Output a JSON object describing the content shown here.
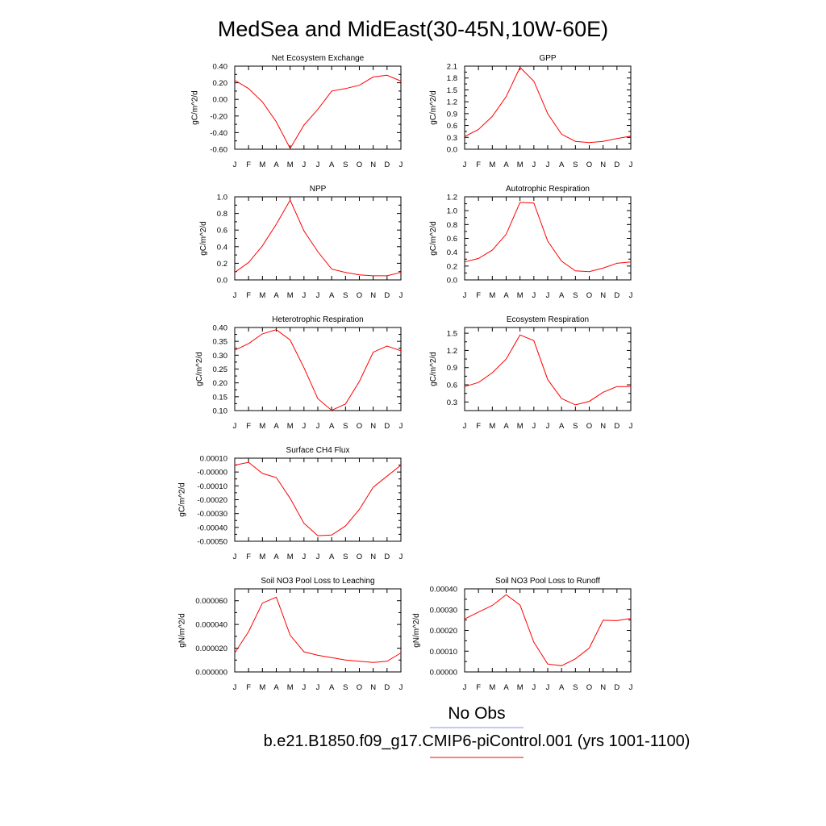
{
  "title": "MedSea and MidEast(30-45N,10W-60E)",
  "legend": [
    {
      "label": "No Obs",
      "color": "#8c8cff"
    },
    {
      "label": "b.e21.B1850.f09_g17.CMIP6-piControl.001 (yrs 1001-1100)",
      "color": "#ff0000"
    }
  ],
  "chart_data": [
    {
      "type": "line",
      "title": "Net Ecosystem Exchange",
      "ylabel": "gC/m^2/d",
      "x": [
        "J",
        "F",
        "M",
        "A",
        "M",
        "J",
        "J",
        "A",
        "S",
        "O",
        "N",
        "D",
        "J"
      ],
      "ylim": [
        -0.6,
        0.4
      ],
      "yticks": [
        -0.6,
        -0.4,
        -0.2,
        0.0,
        0.2,
        0.4
      ],
      "ytick_labels": [
        "-0.60",
        "-0.40",
        "-0.20",
        "0.00",
        "0.20",
        "0.40"
      ],
      "series": [
        {
          "color": "#ff0000",
          "values": [
            0.23,
            0.13,
            -0.03,
            -0.27,
            -0.59,
            -0.31,
            -0.12,
            0.1,
            0.13,
            0.17,
            0.27,
            0.29,
            0.22
          ]
        }
      ]
    },
    {
      "type": "line",
      "title": "GPP",
      "ylabel": "gC/m^2/d",
      "x": [
        "J",
        "F",
        "M",
        "A",
        "M",
        "J",
        "J",
        "A",
        "S",
        "O",
        "N",
        "D",
        "J"
      ],
      "ylim": [
        0.0,
        2.1
      ],
      "yticks": [
        0.0,
        0.3,
        0.6,
        0.9,
        1.2,
        1.5,
        1.8,
        2.1
      ],
      "ytick_labels": [
        "0.0",
        "0.3",
        "0.6",
        "0.9",
        "1.2",
        "1.5",
        "1.8",
        "2.1"
      ],
      "series": [
        {
          "color": "#ff0000",
          "values": [
            0.32,
            0.5,
            0.83,
            1.33,
            2.07,
            1.72,
            0.9,
            0.38,
            0.2,
            0.17,
            0.2,
            0.27,
            0.33
          ]
        }
      ]
    },
    {
      "type": "line",
      "title": "NPP",
      "ylabel": "gC/m^2/d",
      "x": [
        "J",
        "F",
        "M",
        "A",
        "M",
        "J",
        "J",
        "A",
        "S",
        "O",
        "N",
        "D",
        "J"
      ],
      "ylim": [
        0.0,
        1.0
      ],
      "yticks": [
        0.0,
        0.2,
        0.4,
        0.6,
        0.8,
        1.0
      ],
      "ytick_labels": [
        "0.0",
        "0.2",
        "0.4",
        "0.6",
        "0.8",
        "1.0"
      ],
      "series": [
        {
          "color": "#ff0000",
          "values": [
            0.09,
            0.21,
            0.41,
            0.67,
            0.96,
            0.59,
            0.34,
            0.13,
            0.09,
            0.06,
            0.05,
            0.05,
            0.09
          ]
        }
      ]
    },
    {
      "type": "line",
      "title": "Autotrophic Respiration",
      "ylabel": "gC/m^2/d",
      "x": [
        "J",
        "F",
        "M",
        "A",
        "M",
        "J",
        "J",
        "A",
        "S",
        "O",
        "N",
        "D",
        "J"
      ],
      "ylim": [
        0.0,
        1.2
      ],
      "yticks": [
        0.0,
        0.2,
        0.4,
        0.6,
        0.8,
        1.0,
        1.2
      ],
      "ytick_labels": [
        "0.0",
        "0.2",
        "0.4",
        "0.6",
        "0.8",
        "1.0",
        "1.2"
      ],
      "series": [
        {
          "color": "#ff0000",
          "values": [
            0.26,
            0.31,
            0.43,
            0.66,
            1.12,
            1.11,
            0.56,
            0.27,
            0.13,
            0.12,
            0.17,
            0.24,
            0.26
          ]
        }
      ]
    },
    {
      "type": "line",
      "title": "Heterotrophic Respiration",
      "ylabel": "gC/m^2/d",
      "x": [
        "J",
        "F",
        "M",
        "A",
        "M",
        "J",
        "J",
        "A",
        "S",
        "O",
        "N",
        "D",
        "J"
      ],
      "ylim": [
        0.1,
        0.4
      ],
      "yticks": [
        0.1,
        0.15,
        0.2,
        0.25,
        0.3,
        0.35,
        0.4
      ],
      "ytick_labels": [
        "0.10",
        "0.15",
        "0.20",
        "0.25",
        "0.30",
        "0.35",
        "0.40"
      ],
      "series": [
        {
          "color": "#ff0000",
          "values": [
            0.318,
            0.342,
            0.377,
            0.392,
            0.355,
            0.255,
            0.143,
            0.101,
            0.124,
            0.205,
            0.311,
            0.333,
            0.316
          ]
        }
      ]
    },
    {
      "type": "line",
      "title": "Ecosystem Respiration",
      "ylabel": "gC/m^2/d",
      "x": [
        "J",
        "F",
        "M",
        "A",
        "M",
        "J",
        "J",
        "A",
        "S",
        "O",
        "N",
        "D",
        "J"
      ],
      "ylim": [
        0.15,
        1.6
      ],
      "yticks": [
        0.3,
        0.6,
        0.9,
        1.2,
        1.5
      ],
      "ytick_labels": [
        "0.3",
        "0.6",
        "0.9",
        "1.2",
        "1.5"
      ],
      "series": [
        {
          "color": "#ff0000",
          "values": [
            0.57,
            0.64,
            0.81,
            1.05,
            1.47,
            1.37,
            0.69,
            0.36,
            0.25,
            0.31,
            0.47,
            0.57,
            0.57
          ]
        }
      ]
    },
    {
      "type": "line",
      "title": "Surface CH4 Flux",
      "ylabel": "gC/m^2/d",
      "x": [
        "J",
        "F",
        "M",
        "A",
        "M",
        "J",
        "J",
        "A",
        "S",
        "O",
        "N",
        "D",
        "J"
      ],
      "ylim": [
        -0.0005,
        0.0001
      ],
      "yticks": [
        -0.0005,
        -0.0004,
        -0.0003,
        -0.0002,
        -0.0001,
        0.0,
        0.0001
      ],
      "ytick_labels": [
        "-0.00050",
        "-0.00040",
        "-0.00030",
        "-0.00020",
        "-0.00010",
        "-0.00000",
        "0.00010"
      ],
      "series": [
        {
          "color": "#ff0000",
          "values": [
            5e-05,
            7e-05,
            -1e-05,
            -4e-05,
            -0.00019,
            -0.00037,
            -0.00046,
            -0.000455,
            -0.00039,
            -0.00027,
            -0.00011,
            -3e-05,
            5e-05
          ]
        }
      ]
    },
    {
      "type": "line",
      "title": "Soil NO3 Pool Loss to Leaching",
      "ylabel": "gN/m^2/d",
      "x": [
        "J",
        "F",
        "M",
        "A",
        "M",
        "J",
        "J",
        "A",
        "S",
        "O",
        "N",
        "D",
        "J"
      ],
      "ylim": [
        0.0,
        7e-05
      ],
      "yticks": [
        0.0,
        2e-05,
        4e-05,
        6e-05
      ],
      "ytick_labels": [
        "0.000000",
        "0.000020",
        "0.000040",
        "0.000060"
      ],
      "series": [
        {
          "color": "#ff0000",
          "values": [
            1.6e-05,
            3.4e-05,
            5.8e-05,
            6.3e-05,
            3.1e-05,
            1.7e-05,
            1.4e-05,
            1.2e-05,
            1e-05,
            9e-06,
            8e-06,
            9e-06,
            1.6e-05
          ]
        }
      ]
    },
    {
      "type": "line",
      "title": "Soil NO3 Pool Loss to Runoff",
      "ylabel": "gN/m^2/d",
      "x": [
        "J",
        "F",
        "M",
        "A",
        "M",
        "J",
        "J",
        "A",
        "S",
        "O",
        "N",
        "D",
        "J"
      ],
      "ylim": [
        0.0,
        0.0004
      ],
      "yticks": [
        0.0,
        0.0001,
        0.0002,
        0.0003,
        0.0004
      ],
      "ytick_labels": [
        "0.00000",
        "0.00010",
        "0.00020",
        "0.00030",
        "0.00040"
      ],
      "series": [
        {
          "color": "#ff0000",
          "values": [
            0.000255,
            0.000288,
            0.00032,
            0.000372,
            0.000322,
            0.000143,
            3.8e-05,
            3e-05,
            6.3e-05,
            0.000115,
            0.000249,
            0.000247,
            0.000258
          ]
        }
      ]
    }
  ]
}
